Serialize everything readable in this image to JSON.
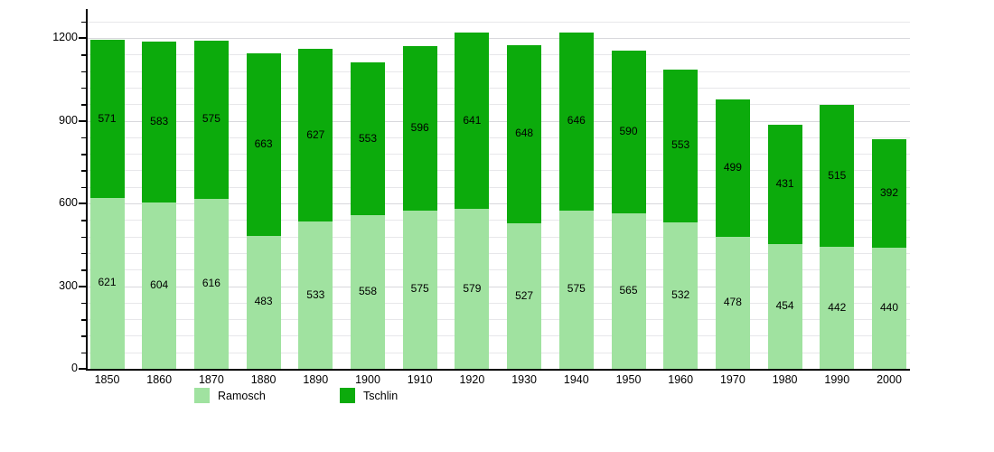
{
  "chart_data": {
    "type": "bar",
    "stacked": true,
    "title": "",
    "xlabel": "",
    "ylabel": "",
    "categories": [
      "1850",
      "1860",
      "1870",
      "1880",
      "1890",
      "1900",
      "1910",
      "1920",
      "1930",
      "1940",
      "1950",
      "1960",
      "1970",
      "1980",
      "1990",
      "2000"
    ],
    "series": [
      {
        "name": "Ramosch",
        "color": "#a0e2a0",
        "values": [
          621,
          604,
          616,
          483,
          533,
          558,
          575,
          579,
          527,
          575,
          565,
          532,
          478,
          454,
          442,
          440
        ]
      },
      {
        "name": "Tschlin",
        "color": "#0cab0c",
        "values": [
          571,
          583,
          575,
          663,
          627,
          553,
          596,
          641,
          648,
          646,
          590,
          553,
          499,
          431,
          515,
          392
        ]
      }
    ],
    "ylim": [
      0,
      1300
    ],
    "yticks": [
      0,
      300,
      600,
      900,
      1200
    ],
    "minor_tick_step": 60,
    "grid": true,
    "legend_position": "bottom",
    "bar_labels_visible": true
  },
  "colors": {
    "axis": "#000000",
    "gridline_minor": "#e7e7ea",
    "gridline_major": "#d8d8dc",
    "background": "#ffffff"
  }
}
